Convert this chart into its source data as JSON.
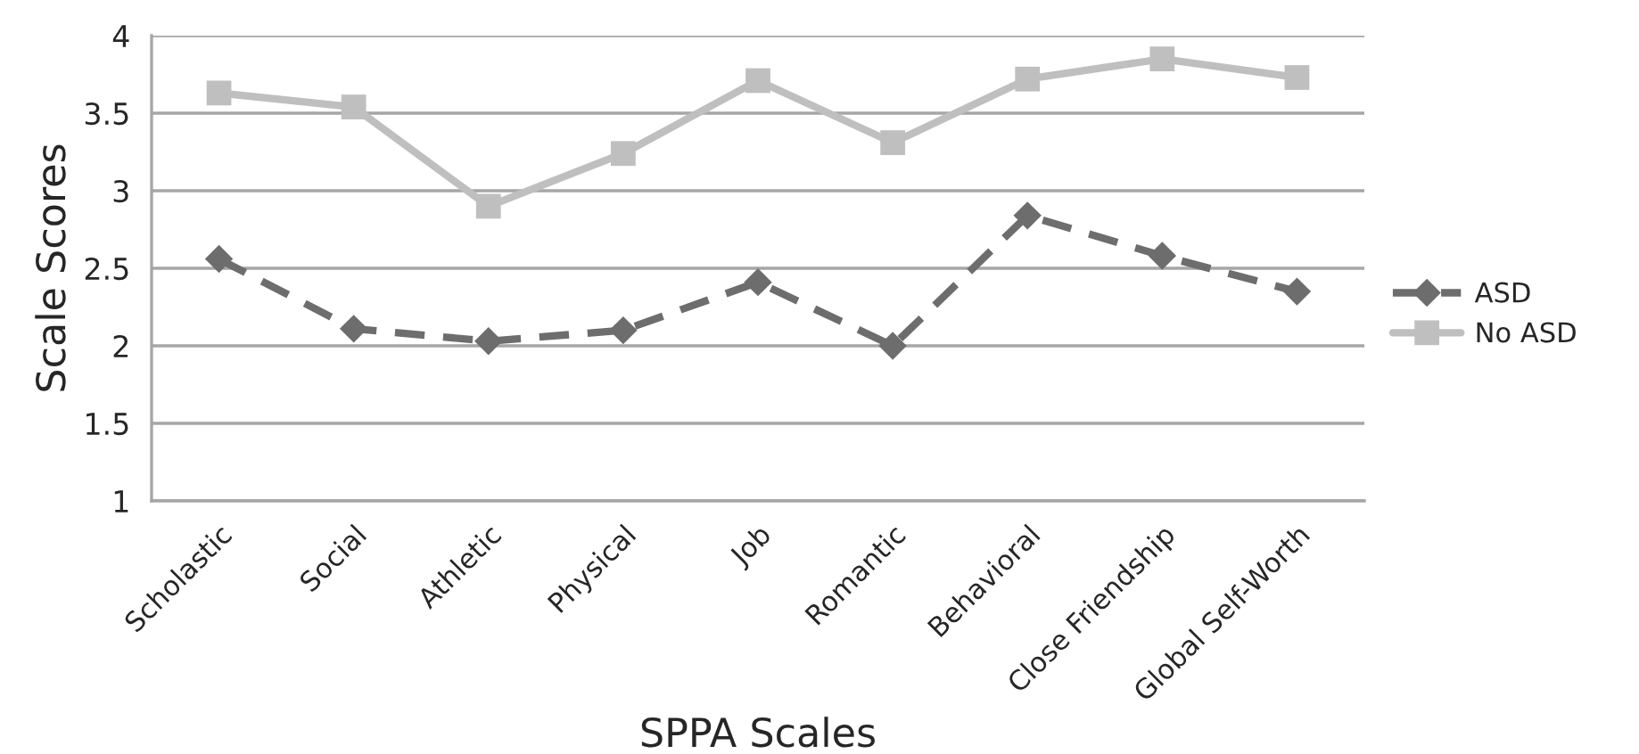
{
  "chart_data": {
    "type": "line",
    "xlabel": "SPPA Scales",
    "ylabel": "Scale Scores",
    "categories": [
      "Scholastic",
      "Social",
      "Athletic",
      "Physical",
      "Job",
      "Romantic",
      "Behavioral",
      "Close Friendship",
      "Global Self-Worth"
    ],
    "series": [
      {
        "name": "ASD",
        "color": "#6d6d6d",
        "marker": "diamond",
        "line_style": "dashed",
        "values": [
          2.56,
          2.11,
          2.03,
          2.1,
          2.41,
          2.0,
          2.84,
          2.58,
          2.35
        ]
      },
      {
        "name": "No ASD",
        "color": "#bfbfbf",
        "marker": "square",
        "line_style": "solid",
        "values": [
          3.63,
          3.54,
          2.9,
          3.24,
          3.71,
          3.31,
          3.72,
          3.85,
          3.73
        ]
      }
    ],
    "ylim": [
      1,
      4
    ],
    "yticks": [
      1,
      1.5,
      2,
      2.5,
      3,
      3.5,
      4
    ],
    "grid": "y",
    "legend": "right"
  }
}
